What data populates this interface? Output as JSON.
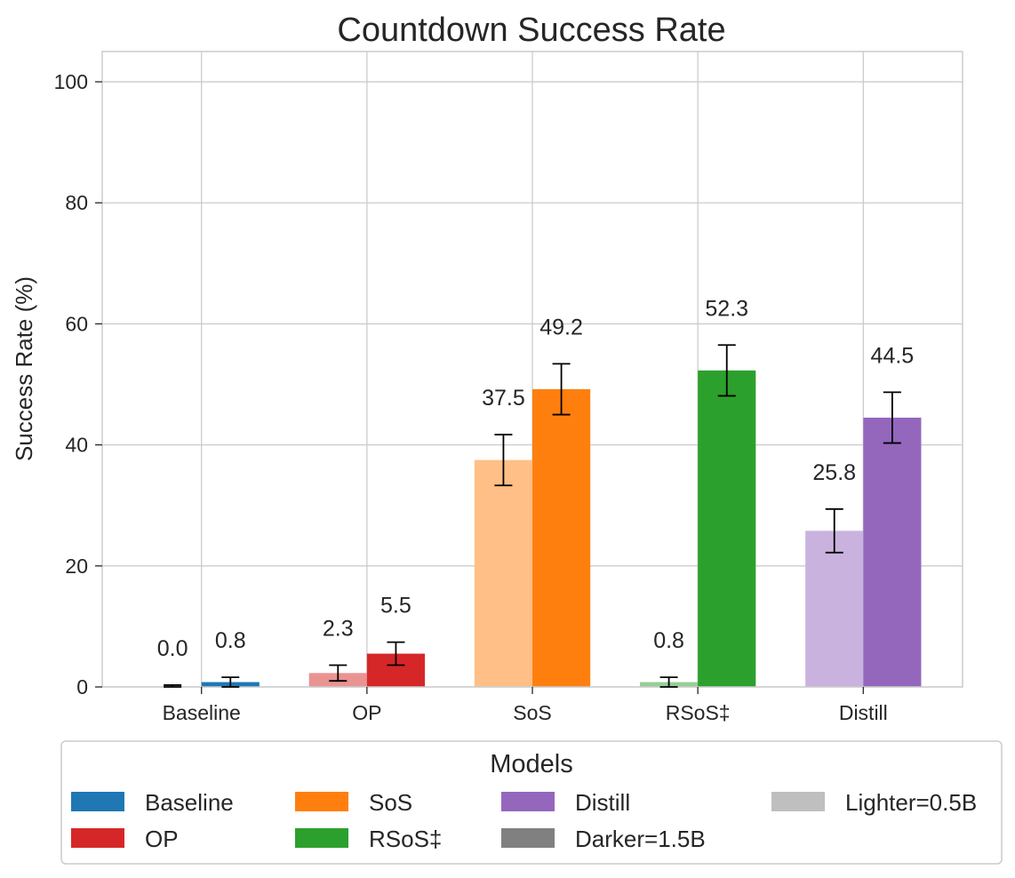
{
  "chart_data": {
    "type": "bar",
    "title": "Countdown Success Rate",
    "xlabel": "",
    "ylabel": "Success Rate (%)",
    "ylim": [
      0,
      105
    ],
    "yticks": [
      0,
      20,
      40,
      60,
      80,
      100
    ],
    "grid": true,
    "categories": [
      "Baseline",
      "OP",
      "SoS",
      "RSoS‡",
      "Distill"
    ],
    "series": [
      {
        "values": [
          0.0,
          2.3,
          37.5,
          0.8,
          25.8
        ],
        "error": [
          0.3,
          1.3,
          4.2,
          0.8,
          3.6
        ],
        "shade": "lighter"
      },
      {
        "values": [
          0.8,
          5.5,
          49.2,
          52.3,
          44.5
        ],
        "error": [
          0.8,
          1.9,
          4.2,
          4.2,
          4.2
        ],
        "shade": "darker"
      }
    ],
    "data_labels": [
      [
        "0.0",
        "2.3",
        "37.5",
        "0.8",
        "25.8"
      ],
      [
        "0.8",
        "5.5",
        "49.2",
        "52.3",
        "44.5"
      ]
    ],
    "colors": {
      "darker": [
        "#1f77b4",
        "#d62728",
        "#ff7f0e",
        "#2ca02c",
        "#9467bd"
      ],
      "lighter": [
        "#8fbbd9",
        "#ea9393",
        "#ffbf86",
        "#95cf95",
        "#c9b3de"
      ]
    },
    "legend": {
      "title": "Models",
      "placement": "bottom",
      "columns": 4,
      "entries": [
        {
          "label": "Baseline",
          "color": "#1f77b4"
        },
        {
          "label": "OP",
          "color": "#d62728"
        },
        {
          "label": "SoS",
          "color": "#ff7f0e"
        },
        {
          "label": "RSoS‡",
          "color": "#2ca02c"
        },
        {
          "label": "Distill",
          "color": "#9467bd"
        },
        {
          "label": "Darker=1.5B",
          "color": "#808080"
        },
        {
          "label": "Lighter=0.5B",
          "color": "#bfbfbf"
        }
      ]
    }
  }
}
